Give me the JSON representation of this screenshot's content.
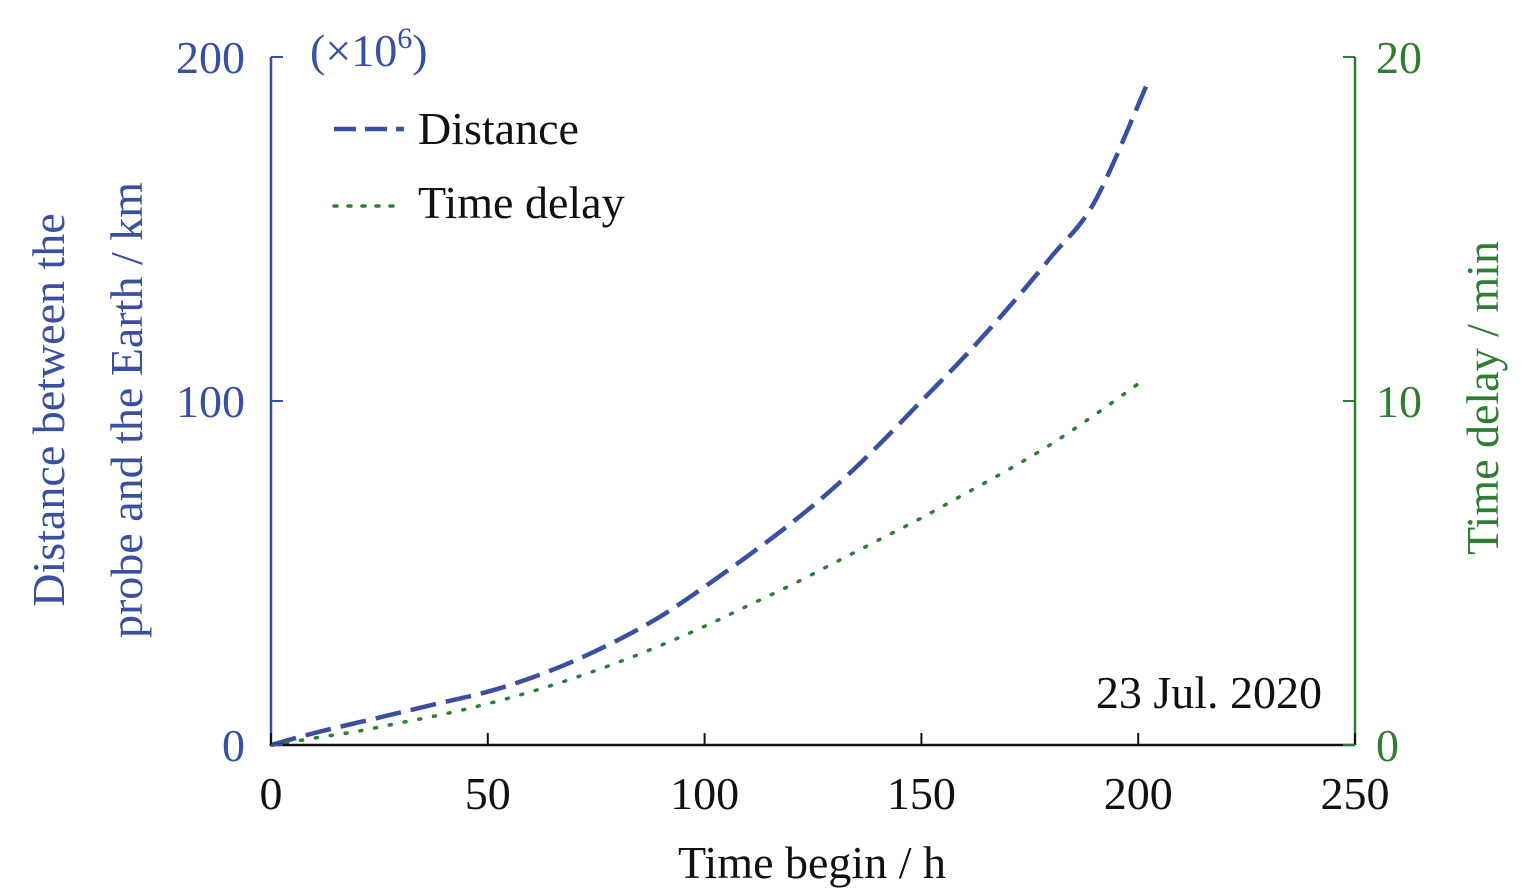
{
  "chart_data": {
    "type": "line",
    "xlabel": "Time begin / h",
    "ylabel_left_lines": [
      "Distance between the",
      "probe and the Earth / km"
    ],
    "ylabel_right": "Time delay / min",
    "left_multiplier": "(×10",
    "left_multiplier_exp": "6",
    "left_multiplier_close": ")",
    "annotation": "23 Jul. 2020",
    "xlim": [
      0,
      250
    ],
    "ylim_left": [
      0,
      200
    ],
    "ylim_right": [
      0,
      20
    ],
    "x_ticks": [
      "0",
      "50",
      "100",
      "150",
      "200",
      "250"
    ],
    "y_left_ticks": [
      "0",
      "100",
      "200"
    ],
    "y_right_ticks": [
      "0",
      "10",
      "20"
    ],
    "grid": false,
    "legend_position": "top-left",
    "colors": {
      "left_axis": "#3a4fa0",
      "right_axis": "#2e7d32",
      "text": "#111111"
    },
    "series": [
      {
        "name": "Distance",
        "axis": "left",
        "style": "dashed",
        "color": "#3a4fa0",
        "x": [
          0,
          10,
          20,
          30,
          40,
          50,
          60,
          70,
          80,
          90,
          100,
          110,
          120,
          130,
          140,
          150,
          160,
          170,
          180,
          190,
          202
        ],
        "values": [
          0,
          3.5,
          6.5,
          9.5,
          12.5,
          15.5,
          19.5,
          24.5,
          30.5,
          37.5,
          46,
          55,
          64.5,
          75,
          87,
          100,
          113,
          127,
          142,
          158,
          192
        ]
      },
      {
        "name": "Time delay",
        "axis": "right",
        "style": "dotted",
        "color": "#2e7d32",
        "x": [
          0,
          10,
          20,
          30,
          40,
          50,
          60,
          70,
          80,
          90,
          100,
          110,
          120,
          130,
          140,
          150,
          160,
          170,
          180,
          190,
          200
        ],
        "values": [
          0,
          0.2,
          0.4,
          0.65,
          0.9,
          1.2,
          1.55,
          1.95,
          2.4,
          2.9,
          3.45,
          4.05,
          4.65,
          5.3,
          5.95,
          6.6,
          7.3,
          8.0,
          8.75,
          9.6,
          10.5
        ]
      }
    ]
  }
}
